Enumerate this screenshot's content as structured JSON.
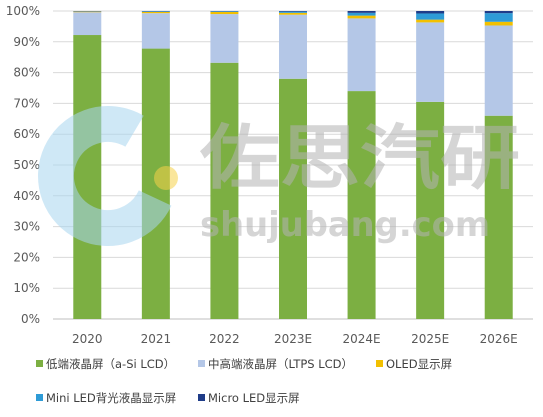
{
  "watermark": {
    "cn": "佐思汽研",
    "url": "shujubang.com"
  },
  "chart_data": {
    "type": "bar",
    "stacked": true,
    "percent": true,
    "categories": [
      "2020",
      "2021",
      "2022",
      "2023E",
      "2024E",
      "2025E",
      "2026E"
    ],
    "series": [
      {
        "name": "低端液晶屏（a-Si LCD）",
        "color": "#7caf42",
        "values": [
          92.2,
          87.8,
          83.2,
          78.0,
          74.0,
          70.5,
          66.0
        ]
      },
      {
        "name": "中高端液晶屏（LTPS LCD）",
        "color": "#b4c7e7",
        "values": [
          7.4,
          11.5,
          15.8,
          20.8,
          23.6,
          25.8,
          29.3
        ]
      },
      {
        "name": "OLED显示屏",
        "color": "#f2c000",
        "values": [
          0.2,
          0.4,
          0.7,
          0.6,
          0.9,
          0.9,
          1.2
        ]
      },
      {
        "name": "Mini LED背光液晶显示屏",
        "color": "#2e9bd6",
        "values": [
          0.1,
          0.2,
          0.2,
          0.4,
          0.9,
          2.0,
          2.8
        ]
      },
      {
        "name": "Micro LED显示屏",
        "color": "#1f3c88",
        "values": [
          0.1,
          0.1,
          0.1,
          0.2,
          0.6,
          0.8,
          0.7
        ]
      }
    ],
    "ylim": [
      0,
      100
    ],
    "yticks": [
      "0%",
      "10%",
      "20%",
      "30%",
      "40%",
      "50%",
      "60%",
      "70%",
      "80%",
      "90%",
      "100%"
    ],
    "grid": true,
    "legend_position": "bottom"
  }
}
